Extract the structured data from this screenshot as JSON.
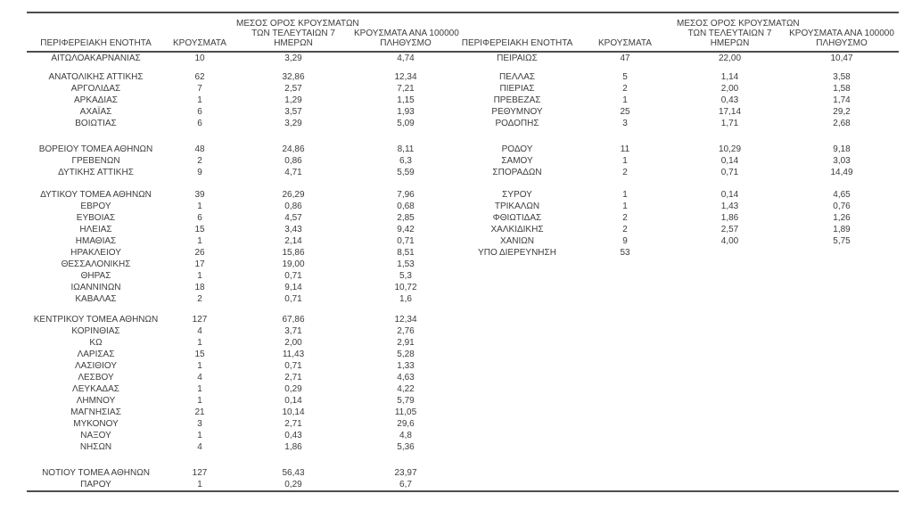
{
  "colors": {
    "text": "#3c3c3c",
    "rule": "#4d4d4d",
    "background": "#ffffff"
  },
  "table": {
    "headers": {
      "region": "ΠΕΡΙΦΕΡΕΙΑΚΗ ΕΝΟΤΗΤΑ",
      "cases": "ΚΡΟΥΣΜΑΤΑ",
      "avg7_lines": [
        "ΜΕΣΟΣ ΟΡΟΣ ΚΡΟΥΣΜΑΤΩΝ",
        "ΤΩΝ ΤΕΛΕΥΤΑΙΩΝ 7",
        "ΗΜΕΡΩΝ"
      ],
      "per100k_lines": [
        "ΚΡΟΥΣΜΑΤΑ ΑΝΑ 100000",
        "ΠΛΗΘΥΣΜΟ"
      ]
    },
    "rows": [
      {
        "type": "data",
        "left": [
          "ΑΙΤΩΛΟΑΚΑΡΝΑΝΙΑΣ",
          "10",
          "3,29",
          "4,74"
        ],
        "right": [
          "ΠΕΙΡΑΙΩΣ",
          "47",
          "22,00",
          "10,47"
        ]
      },
      {
        "type": "spacer",
        "h": 8
      },
      {
        "type": "data",
        "left": [
          "ΑΝΑΤΟΛΙΚΗΣ ΑΤΤΙΚΗΣ",
          "62",
          "32,86",
          "12,34"
        ],
        "right": [
          "ΠΕΛΛΑΣ",
          "5",
          "1,14",
          "3,58"
        ]
      },
      {
        "type": "data",
        "left": [
          "ΑΡΓΟΛΙΔΑΣ",
          "7",
          "2,57",
          "7,21"
        ],
        "right": [
          "ΠΙΕΡΙΑΣ",
          "2",
          "2,00",
          "1,58"
        ]
      },
      {
        "type": "data",
        "left": [
          "ΑΡΚΑΔΙΑΣ",
          "1",
          "1,29",
          "1,15"
        ],
        "right": [
          "ΠΡΕΒΕΖΑΣ",
          "1",
          "0,43",
          "1,74"
        ]
      },
      {
        "type": "data",
        "left": [
          "ΑΧΑΪΑΣ",
          "6",
          "3,57",
          "1,93"
        ],
        "right": [
          "ΡΕΘΥΜΝΟΥ",
          "25",
          "17,14",
          "29,2"
        ]
      },
      {
        "type": "data",
        "left": [
          "ΒΟΙΩΤΙΑΣ",
          "6",
          "3,29",
          "5,09"
        ],
        "right": [
          "ΡΟΔΟΠΗΣ",
          "3",
          "1,71",
          "2,68"
        ]
      },
      {
        "type": "spacer",
        "h": 16
      },
      {
        "type": "data",
        "left": [
          "ΒΟΡΕΙΟΥ ΤΟΜΕΑ ΑΘΗΝΩΝ",
          "48",
          "24,86",
          "8,11"
        ],
        "right": [
          "ΡΟΔΟΥ",
          "11",
          "10,29",
          "9,18"
        ]
      },
      {
        "type": "data",
        "left": [
          "ΓΡΕΒΕΝΩΝ",
          "2",
          "0,86",
          "6,3"
        ],
        "right": [
          "ΣΑΜΟΥ",
          "1",
          "0,14",
          "3,03"
        ]
      },
      {
        "type": "data",
        "left": [
          "ΔΥΤΙΚΗΣ ΑΤΤΙΚΗΣ",
          "9",
          "4,71",
          "5,59"
        ],
        "right": [
          "ΣΠΟΡΑΔΩΝ",
          "2",
          "0,71",
          "14,49"
        ]
      },
      {
        "type": "spacer",
        "h": 12
      },
      {
        "type": "data",
        "left": [
          "ΔΥΤΙΚΟΥ ΤΟΜΕΑ ΑΘΗΝΩΝ",
          "39",
          "26,29",
          "7,96"
        ],
        "right": [
          "ΣΥΡΟΥ",
          "1",
          "0,14",
          "4,65"
        ]
      },
      {
        "type": "data",
        "left": [
          "ΕΒΡΟΥ",
          "1",
          "0,86",
          "0,68"
        ],
        "right": [
          "ΤΡΙΚΑΛΩΝ",
          "1",
          "1,43",
          "0,76"
        ]
      },
      {
        "type": "data",
        "left": [
          "ΕΥΒΟΙΑΣ",
          "6",
          "4,57",
          "2,85"
        ],
        "right": [
          "ΦΘΙΩΤΙΔΑΣ",
          "2",
          "1,86",
          "1,26"
        ]
      },
      {
        "type": "data",
        "left": [
          "ΗΛΕΙΑΣ",
          "15",
          "3,43",
          "9,42"
        ],
        "right": [
          "ΧΑΛΚΙΔΙΚΗΣ",
          "2",
          "2,57",
          "1,89"
        ]
      },
      {
        "type": "data",
        "left": [
          "ΗΜΑΘΙΑΣ",
          "1",
          "2,14",
          "0,71"
        ],
        "right": [
          "ΧΑΝΙΩΝ",
          "9",
          "4,00",
          "5,75"
        ]
      },
      {
        "type": "data",
        "left": [
          "ΗΡΑΚΛΕΙΟΥ",
          "26",
          "15,86",
          "8,51"
        ],
        "right": [
          "ΥΠΟ ΔΙΕΡΕΥΝΗΣΗ",
          "53",
          "",
          ""
        ]
      },
      {
        "type": "data",
        "left": [
          "ΘΕΣΣΑΛΟΝΙΚΗΣ",
          "17",
          "19,00",
          "1,53"
        ],
        "right": [
          "",
          "",
          "",
          ""
        ]
      },
      {
        "type": "data",
        "left": [
          "ΘΗΡΑΣ",
          "1",
          "0,71",
          "5,3"
        ],
        "right": [
          "",
          "",
          "",
          ""
        ]
      },
      {
        "type": "data",
        "left": [
          "ΙΩΑΝΝΙΝΩΝ",
          "18",
          "9,14",
          "10,72"
        ],
        "right": [
          "",
          "",
          "",
          ""
        ]
      },
      {
        "type": "data",
        "left": [
          "ΚΑΒΑΛΑΣ",
          "2",
          "0,71",
          "1,6"
        ],
        "right": [
          "",
          "",
          "",
          ""
        ]
      },
      {
        "type": "spacer",
        "h": 10
      },
      {
        "type": "data",
        "left": [
          "ΚΕΝΤΡΙΚΟΥ ΤΟΜΕΑ ΑΘΗΝΩΝ",
          "127",
          "67,86",
          "12,34"
        ],
        "right": [
          "",
          "",
          "",
          ""
        ]
      },
      {
        "type": "data",
        "left": [
          "ΚΟΡΙΝΘΙΑΣ",
          "4",
          "3,71",
          "2,76"
        ],
        "right": [
          "",
          "",
          "",
          ""
        ]
      },
      {
        "type": "data",
        "left": [
          "ΚΩ",
          "1",
          "2,00",
          "2,91"
        ],
        "right": [
          "",
          "",
          "",
          ""
        ]
      },
      {
        "type": "data",
        "left": [
          "ΛΑΡΙΣΑΣ",
          "15",
          "11,43",
          "5,28"
        ],
        "right": [
          "",
          "",
          "",
          ""
        ]
      },
      {
        "type": "data",
        "left": [
          "ΛΑΣΙΘΙΟΥ",
          "1",
          "0,71",
          "1,33"
        ],
        "right": [
          "",
          "",
          "",
          ""
        ]
      },
      {
        "type": "data",
        "left": [
          "ΛΕΣΒΟΥ",
          "4",
          "2,71",
          "4,63"
        ],
        "right": [
          "",
          "",
          "",
          ""
        ]
      },
      {
        "type": "data",
        "left": [
          "ΛΕΥΚΑΔΑΣ",
          "1",
          "0,29",
          "4,22"
        ],
        "right": [
          "",
          "",
          "",
          ""
        ]
      },
      {
        "type": "data",
        "left": [
          "ΛΗΜΝΟΥ",
          "1",
          "0,14",
          "5,79"
        ],
        "right": [
          "",
          "",
          "",
          ""
        ]
      },
      {
        "type": "data",
        "left": [
          "ΜΑΓΝΗΣΙΑΣ",
          "21",
          "10,14",
          "11,05"
        ],
        "right": [
          "",
          "",
          "",
          ""
        ]
      },
      {
        "type": "data",
        "left": [
          "ΜΥΚΟΝΟΥ",
          "3",
          "2,71",
          "29,6"
        ],
        "right": [
          "",
          "",
          "",
          ""
        ]
      },
      {
        "type": "data",
        "left": [
          "ΝΑΞΟΥ",
          "1",
          "0,43",
          "4,8"
        ],
        "right": [
          "",
          "",
          "",
          ""
        ]
      },
      {
        "type": "data",
        "left": [
          "ΝΗΣΩΝ",
          "4",
          "1,86",
          "5,36"
        ],
        "right": [
          "",
          "",
          "",
          ""
        ]
      },
      {
        "type": "spacer",
        "h": 16
      },
      {
        "type": "data",
        "left": [
          "ΝΟΤΙΟΥ ΤΟΜΕΑ ΑΘΗΝΩΝ",
          "127",
          "56,43",
          "23,97"
        ],
        "right": [
          "",
          "",
          "",
          ""
        ]
      },
      {
        "type": "data",
        "left": [
          "ΠΑΡΟΥ",
          "1",
          "0,29",
          "6,7"
        ],
        "right": [
          "",
          "",
          "",
          ""
        ]
      }
    ]
  }
}
